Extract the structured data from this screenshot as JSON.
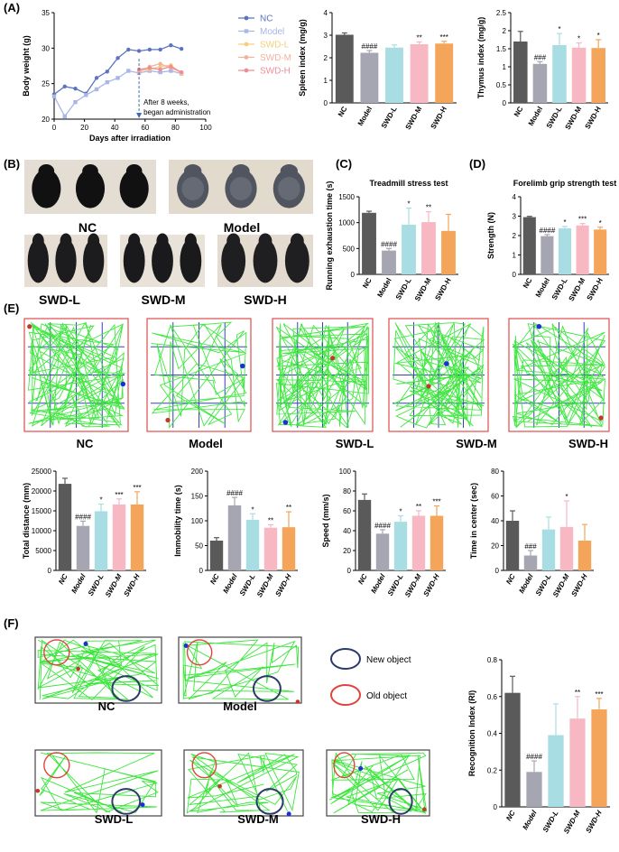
{
  "panels": {
    "A": "(A)",
    "B": "(B)",
    "C": "(C)",
    "D": "(D)",
    "E": "(E)",
    "F": "(F)"
  },
  "groups": [
    "NC",
    "Model",
    "SWD-L",
    "SWD-M",
    "SWD-H"
  ],
  "group_colors": {
    "NC": "#5a5a5a",
    "Model": "#a6a6b3",
    "SWD-L": "#a8dee3",
    "SWD-M": "#f7b8c4",
    "SWD-H": "#f4a55a"
  },
  "line_colors": {
    "NC": "#5b74c0",
    "Model": "#a9b6e6",
    "SWD-L": "#f3cf7a",
    "SWD-M": "#f2b2a0",
    "SWD-H": "#ee8d98"
  },
  "bodyweight_annotation": [
    "After 8 weeks,",
    "began administration"
  ],
  "photo_labels": {
    "NC": "NC",
    "Model": "Model",
    "SWD-L": "SWD-L",
    "SWD-M": "SWD-M",
    "SWD-H": "SWD-H"
  },
  "legend_F": {
    "new": "New object",
    "old": "Old object"
  },
  "chart_data": [
    {
      "id": "bodyweight",
      "type": "line",
      "xlabel": "Days after irradiation",
      "ylabel": "Body weight (g)",
      "xlim": [
        0,
        100
      ],
      "ylim": [
        20,
        35
      ],
      "xticks": [
        0,
        20,
        40,
        60,
        80,
        100
      ],
      "yticks": [
        20,
        25,
        30,
        35
      ],
      "x": [
        0,
        7,
        14,
        21,
        28,
        35,
        42,
        49,
        56,
        63,
        70,
        77,
        84
      ],
      "series": [
        {
          "name": "NC",
          "values": [
            23.5,
            24.6,
            24.3,
            23.6,
            25.8,
            26.7,
            28.6,
            29.8,
            29.6,
            29.8,
            29.8,
            30.4,
            29.9
          ]
        },
        {
          "name": "Model",
          "values": [
            23.2,
            20.4,
            22.4,
            23.4,
            24.2,
            25.2,
            25.8,
            26.8,
            26.5,
            26.8,
            26.6,
            26.8,
            26.4
          ]
        },
        {
          "name": "SWD-L",
          "values": [
            null,
            null,
            null,
            null,
            null,
            null,
            null,
            null,
            26.8,
            27.0,
            27.4,
            27.6,
            26.4
          ]
        },
        {
          "name": "SWD-M",
          "values": [
            null,
            null,
            null,
            null,
            null,
            null,
            null,
            null,
            26.6,
            27.4,
            27.8,
            27.2,
            26.6
          ]
        },
        {
          "name": "SWD-H",
          "values": [
            null,
            null,
            null,
            null,
            null,
            null,
            null,
            null,
            27.0,
            27.2,
            27.0,
            27.4,
            26.6
          ]
        }
      ]
    },
    {
      "id": "spleen",
      "type": "bar",
      "ylabel": "Spleen index (mg/g)",
      "ylim": [
        0,
        4
      ],
      "yticks": [
        0,
        1,
        2,
        3,
        4
      ],
      "categories": [
        "NC",
        "Model",
        "SWD-L",
        "SWD-M",
        "SWD-H"
      ],
      "values": [
        3.02,
        2.22,
        2.45,
        2.6,
        2.63
      ],
      "errors": [
        0.08,
        0.1,
        0.12,
        0.1,
        0.1
      ],
      "sig": [
        "",
        "####",
        "",
        "**",
        "***"
      ]
    },
    {
      "id": "thymus",
      "type": "bar",
      "ylabel": "Thymus index (mg/g)",
      "ylim": [
        0,
        2.5
      ],
      "yticks": [
        0.0,
        0.5,
        1.0,
        1.5,
        2.0,
        2.5
      ],
      "categories": [
        "NC",
        "Model",
        "SWD-L",
        "SWD-M",
        "SWD-H"
      ],
      "values": [
        1.7,
        1.08,
        1.6,
        1.53,
        1.52
      ],
      "errors": [
        0.28,
        0.06,
        0.32,
        0.13,
        0.23
      ],
      "sig": [
        "",
        "###",
        "*",
        "*",
        "*"
      ]
    },
    {
      "id": "treadmill",
      "type": "bar",
      "title": "Treadmill stress test",
      "ylabel": "Running exhaustion time (s)",
      "ylim": [
        0,
        1500
      ],
      "yticks": [
        0,
        500,
        1000,
        1500
      ],
      "categories": [
        "NC",
        "Model",
        "SWD-L",
        "SWD-M",
        "SWD-H"
      ],
      "values": [
        1190,
        460,
        960,
        1010,
        840
      ],
      "errors": [
        30,
        40,
        320,
        200,
        320
      ],
      "sig": [
        "",
        "####",
        "*",
        "**",
        ""
      ]
    },
    {
      "id": "grip",
      "type": "bar",
      "title": "Forelimb grip strength test",
      "ylabel": "Strength (N)",
      "ylim": [
        0,
        4
      ],
      "yticks": [
        0,
        1,
        2,
        3,
        4
      ],
      "categories": [
        "NC",
        "Model",
        "SWD-L",
        "SWD-M",
        "SWD-H"
      ],
      "values": [
        2.95,
        1.97,
        2.37,
        2.52,
        2.31
      ],
      "errors": [
        0.04,
        0.08,
        0.1,
        0.1,
        0.12
      ],
      "sig": [
        "",
        "####",
        "*",
        "***",
        "*"
      ]
    },
    {
      "id": "distance",
      "type": "bar",
      "ylabel": "Total distance (mm)",
      "ylim": [
        0,
        25000
      ],
      "yticks": [
        0,
        5000,
        10000,
        15000,
        20000,
        25000
      ],
      "categories": [
        "NC",
        "Model",
        "SWD-L",
        "SWD-M",
        "SWD-H"
      ],
      "values": [
        21800,
        11200,
        14900,
        16600,
        16600
      ],
      "errors": [
        1400,
        1200,
        1800,
        1400,
        3200
      ],
      "sig": [
        "",
        "####",
        "*",
        "***",
        "***"
      ]
    },
    {
      "id": "immobility",
      "type": "bar",
      "ylabel": "Immobility time (s)",
      "ylim": [
        0,
        200
      ],
      "yticks": [
        0,
        50,
        100,
        150,
        200
      ],
      "categories": [
        "NC",
        "Model",
        "SWD-L",
        "SWD-M",
        "SWD-H"
      ],
      "values": [
        60,
        131,
        102,
        86,
        87
      ],
      "errors": [
        6,
        16,
        12,
        6,
        31
      ],
      "sig": [
        "",
        "####",
        "*",
        "**",
        "**"
      ]
    },
    {
      "id": "speed",
      "type": "bar",
      "ylabel": "Speed (mm/s)",
      "ylim": [
        0,
        100
      ],
      "yticks": [
        0,
        20,
        40,
        60,
        80,
        100
      ],
      "categories": [
        "NC",
        "Model",
        "SWD-L",
        "SWD-M",
        "SWD-H"
      ],
      "values": [
        71,
        37,
        49,
        55,
        55
      ],
      "errors": [
        6,
        4,
        6,
        5,
        10
      ],
      "sig": [
        "",
        "####",
        "*",
        "**",
        "***"
      ]
    },
    {
      "id": "center",
      "type": "bar",
      "ylabel": "Time in center (sec)",
      "ylim": [
        0,
        80
      ],
      "yticks": [
        0,
        20,
        40,
        60,
        80
      ],
      "categories": [
        "NC",
        "Model",
        "SWD-L",
        "SWD-M",
        "SWD-H"
      ],
      "values": [
        40,
        12,
        33,
        35,
        24
      ],
      "errors": [
        8,
        4,
        10,
        21,
        13
      ],
      "sig": [
        "",
        "###",
        "",
        "*",
        ""
      ]
    },
    {
      "id": "ri",
      "type": "bar",
      "ylabel": "Recognition Index (RI)",
      "ylim": [
        0,
        0.8
      ],
      "yticks": [
        0.0,
        0.2,
        0.4,
        0.6,
        0.8
      ],
      "categories": [
        "NC",
        "Model",
        "SWD-L",
        "SWD-M",
        "SWD-H"
      ],
      "values": [
        0.62,
        0.19,
        0.39,
        0.48,
        0.53
      ],
      "errors": [
        0.09,
        0.06,
        0.17,
        0.12,
        0.06
      ],
      "sig": [
        "",
        "####",
        "",
        "**",
        "***"
      ]
    }
  ]
}
